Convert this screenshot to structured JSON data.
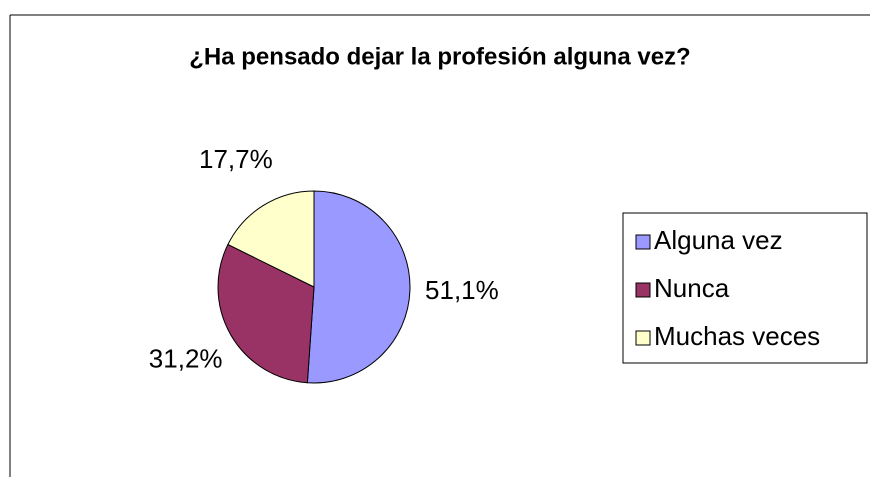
{
  "chart_data": {
    "type": "pie",
    "title": "¿Ha pensado dejar la profesión alguna vez?",
    "categories": [
      "Alguna vez",
      "Nunca",
      "Muchas veces"
    ],
    "values": [
      51.1,
      31.2,
      17.7
    ],
    "value_labels": [
      "51,1%",
      "31,2%",
      "17,7%"
    ],
    "colors": [
      "#9999ff",
      "#993366",
      "#ffffcc"
    ],
    "legend": "right"
  }
}
